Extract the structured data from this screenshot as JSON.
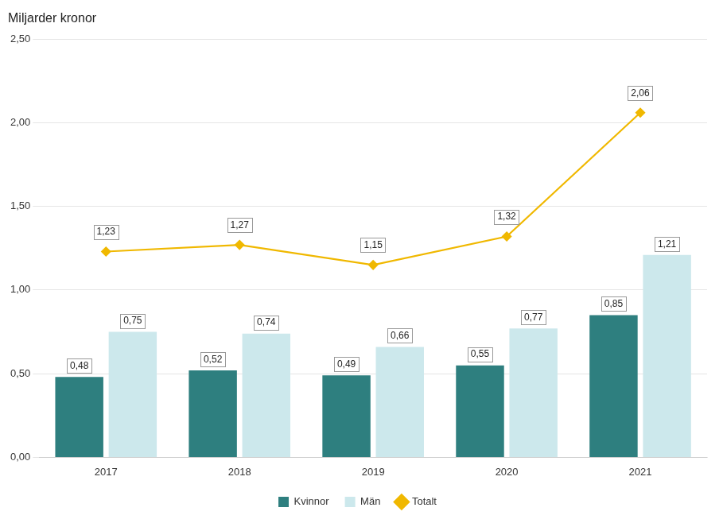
{
  "chart_data": {
    "type": "bar",
    "ylabel": "Miljarder kronor",
    "categories": [
      "2017",
      "2018",
      "2019",
      "2020",
      "2021"
    ],
    "series": [
      {
        "name": "Kvinnor",
        "type": "bar",
        "color": "#2e7f7f",
        "values": [
          0.48,
          0.52,
          0.49,
          0.55,
          0.85
        ],
        "value_labels": [
          "0,48",
          "0,52",
          "0,49",
          "0,55",
          "0,85"
        ]
      },
      {
        "name": "Män",
        "type": "bar",
        "color": "#cce8ec",
        "values": [
          0.75,
          0.74,
          0.66,
          0.77,
          1.21
        ],
        "value_labels": [
          "0,75",
          "0,74",
          "0,66",
          "0,77",
          "1,21"
        ]
      },
      {
        "name": "Totalt",
        "type": "line",
        "color": "#f0b800",
        "marker": "diamond",
        "values": [
          1.23,
          1.27,
          1.15,
          1.32,
          2.06
        ],
        "value_labels": [
          "1,23",
          "1,27",
          "1,15",
          "1,32",
          "2,06"
        ]
      }
    ],
    "ylim": [
      0,
      2.5
    ],
    "yticks": [
      {
        "value": 0.0,
        "label": "0,00"
      },
      {
        "value": 0.5,
        "label": "0,50"
      },
      {
        "value": 1.0,
        "label": "1,00"
      },
      {
        "value": 1.5,
        "label": "1,50"
      },
      {
        "value": 2.0,
        "label": "2,00"
      },
      {
        "value": 2.5,
        "label": "2,50"
      }
    ],
    "grid": true,
    "legend": "bottom",
    "data_labels": true
  }
}
